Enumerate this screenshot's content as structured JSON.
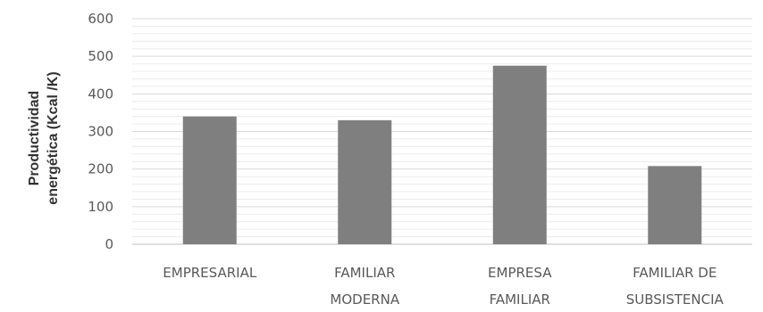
{
  "chart_data": {
    "type": "bar",
    "title": "",
    "xlabel": "",
    "ylabel_lines": [
      "Productividad",
      "energética (Kcal /K)"
    ],
    "ylim": [
      0,
      600
    ],
    "yticks": [
      0,
      100,
      200,
      300,
      400,
      500,
      600
    ],
    "minor_grid_step": 20,
    "grid": true,
    "legend": "none",
    "categories": [
      [
        "EMPRESARIAL"
      ],
      [
        "FAMILIAR",
        "MODERNA"
      ],
      [
        "EMPRESA",
        "FAMILIAR"
      ],
      [
        "FAMILIAR DE",
        "SUBSISTENCIA"
      ]
    ],
    "values": [
      340,
      330,
      475,
      208
    ],
    "bar_color": "#7f7f7f",
    "grid_color": "#d9d9d9"
  }
}
